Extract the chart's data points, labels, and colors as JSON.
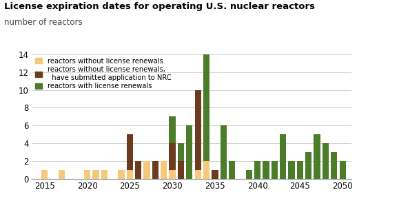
{
  "title": "License expiration dates for operating U.S. nuclear reactors",
  "subtitle": "number of reactors",
  "years": [
    2015,
    2016,
    2017,
    2018,
    2019,
    2020,
    2021,
    2022,
    2023,
    2024,
    2025,
    2026,
    2027,
    2028,
    2029,
    2030,
    2031,
    2032,
    2033,
    2034,
    2035,
    2036,
    2037,
    2038,
    2039,
    2040,
    2041,
    2042,
    2043,
    2044,
    2045,
    2046,
    2047,
    2048,
    2049,
    2050
  ],
  "no_renewal": [
    1,
    0,
    1,
    0,
    0,
    1,
    1,
    1,
    0,
    1,
    1,
    0,
    2,
    0,
    2,
    1,
    0,
    0,
    1,
    2,
    0,
    0,
    0,
    0,
    0,
    0,
    0,
    0,
    0,
    0,
    0,
    0,
    0,
    0,
    0,
    0
  ],
  "submitted": [
    0,
    0,
    0,
    0,
    0,
    0,
    0,
    0,
    0,
    0,
    4,
    2,
    0,
    2,
    0,
    3,
    2,
    0,
    9,
    0,
    1,
    0,
    0,
    0,
    0,
    0,
    0,
    0,
    0,
    0,
    0,
    0,
    0,
    0,
    0,
    0
  ],
  "renewed": [
    0,
    0,
    0,
    0,
    0,
    0,
    0,
    0,
    0,
    0,
    0,
    0,
    0,
    0,
    0,
    3,
    2,
    6,
    0,
    13,
    0,
    6,
    2,
    0,
    1,
    2,
    2,
    2,
    5,
    2,
    2,
    3,
    5,
    4,
    3,
    2
  ],
  "color_no_renewal": "#f5c97a",
  "color_submitted": "#6b3a1f",
  "color_renewed": "#4a7c2a",
  "ylim": [
    0,
    14
  ],
  "yticks": [
    0,
    2,
    4,
    6,
    8,
    10,
    12,
    14
  ],
  "xticks": [
    2015,
    2020,
    2025,
    2030,
    2035,
    2040,
    2045,
    2050
  ],
  "legend_labels": [
    "reactors without license renewals",
    "reactors without license renewals,\n  have submitted application to NRC",
    "reactors with license renewals"
  ],
  "bar_width": 0.75
}
